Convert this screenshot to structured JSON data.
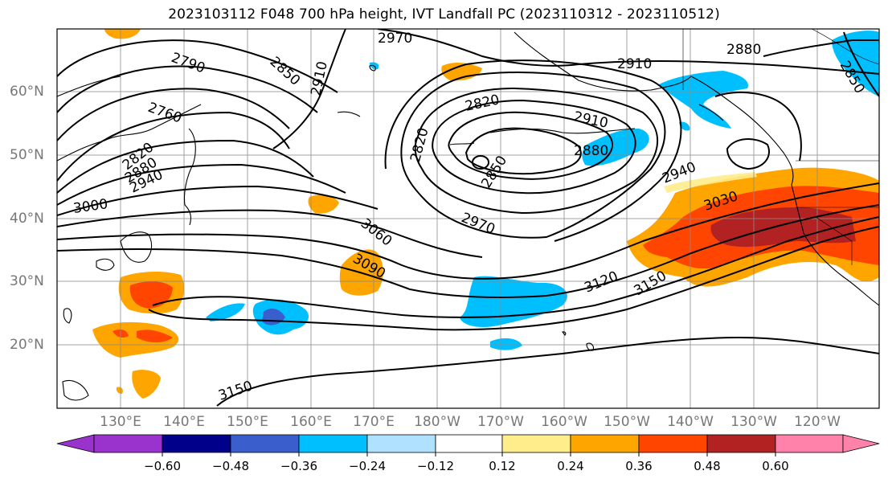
{
  "title": "2023103112 F048 700 hPa height, IVT Landfall PC (2023110312 - 2023110512)",
  "lon_labels": [
    "130°E",
    "140°E",
    "150°E",
    "160°E",
    "170°E",
    "180°W",
    "170°W",
    "160°W",
    "150°W",
    "140°W",
    "130°W",
    "120°W"
  ],
  "lat_labels": [
    "60°N",
    "50°N",
    "40°N",
    "30°N",
    "20°N"
  ],
  "contour_labels": [
    "2970",
    "2790",
    "2850",
    "2910",
    "2760",
    "2820",
    "2880",
    "2940",
    "3000",
    "2910",
    "2880",
    "2850",
    "2820",
    "2820",
    "2910",
    "2880",
    "2850",
    "2940",
    "3030",
    "3060",
    "2970",
    "3090",
    "3120",
    "3150",
    "3150"
  ],
  "colorbar": {
    "ticks": [
      "−0.60",
      "−0.48",
      "−0.36",
      "−0.24",
      "−0.12",
      "0.12",
      "0.24",
      "0.36",
      "0.48",
      "0.60"
    ],
    "colors": [
      "#9a32cd",
      "#00008b",
      "#3a5fcd",
      "#00bfff",
      "#b0e2ff",
      "#ffffff",
      "#ffec8b",
      "#ffa500",
      "#ff4500",
      "#b22222",
      "#ff82ab"
    ]
  }
}
